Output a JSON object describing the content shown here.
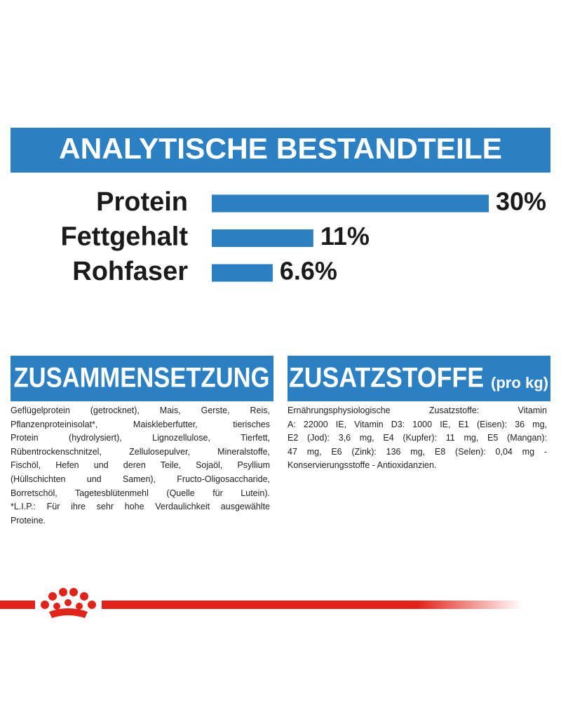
{
  "chart_data": {
    "type": "bar",
    "orientation": "horizontal",
    "title": "ANALYTISCHE BESTANDTEILE",
    "categories": [
      "Protein",
      "Fettgehalt",
      "Rohfaser"
    ],
    "values": [
      30,
      11,
      6.6
    ],
    "value_labels": [
      "30%",
      "11%",
      "6.6%"
    ],
    "color": "#2b7fc3"
  },
  "composition": {
    "title": "ZUSAMMENSETZUNG",
    "lines": [
      "Geflügelprotein (getrocknet), Mais, Gerste, Reis,",
      "Pflanzenproteinisolat*, Maiskleberfutter, tierisches",
      "Protein (hydrolysiert), Lignozellulose, Tierfett,",
      "Rübentrockenschnitzel, Zellulosepulver, Mineralstoffe,",
      "Fischöl, Hefen und deren Teile, Sojaöl, Psyllium",
      "(Hüllschichten und Samen), Fructo-Oligosaccharide,",
      "Borretschöl, Tagetesblütenmehl (Quelle für Lutein).",
      "*L.I.P.: Für ihre sehr hohe Verdaulichkeit ausgewählte",
      "Proteine."
    ]
  },
  "additives": {
    "title": "ZUSATZSTOFFE",
    "subtitle": "(pro kg)",
    "lines": [
      "Ernährungsphysiologische Zusatzstoffe: Vitamin",
      "A: 22000 IE, Vitamin D3: 1000 IE, E1 (Eisen): 36 mg,",
      "E2 (Jod): 3,6 mg, E4 (Kupfer): 11 mg, E5 (Mangan):",
      "47 mg, E6 (Zink): 136 mg, E8 (Selen): 0,04 mg -",
      "Konservierungsstoffe - Antioxidanzien."
    ]
  }
}
